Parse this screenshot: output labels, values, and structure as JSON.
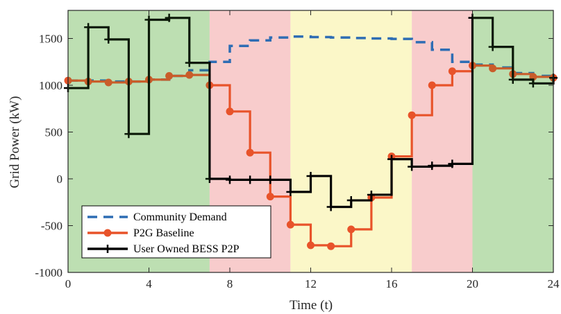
{
  "chart_data": {
    "type": "line",
    "xlabel": "Time (t)",
    "ylabel": "Grid Power (kW)",
    "xlim": [
      0,
      24
    ],
    "ylim": [
      -1000,
      1800
    ],
    "xticks": [
      0,
      4,
      8,
      12,
      16,
      20,
      24
    ],
    "yticks": [
      -1000,
      -500,
      0,
      500,
      1000,
      1500
    ],
    "step": true,
    "regions": [
      {
        "from": 0,
        "to": 7,
        "color": "#d9f2d0"
      },
      {
        "from": 7,
        "to": 11,
        "color": "#f8cccc"
      },
      {
        "from": 11,
        "to": 17,
        "color": "#fbf7c8"
      },
      {
        "from": 17,
        "to": 20,
        "color": "#f8cccc"
      },
      {
        "from": 20,
        "to": 24,
        "color": "#d9f2d0"
      }
    ],
    "series": [
      {
        "name": "Community Demand",
        "color": "#2e6db4",
        "style": "dashed",
        "x": [
          0,
          1,
          2,
          3,
          4,
          5,
          6,
          7,
          8,
          9,
          10,
          11,
          12,
          13,
          14,
          15,
          16,
          17,
          18,
          19,
          20,
          21,
          22,
          23,
          24
        ],
        "values": [
          1050,
          1050,
          1040,
          1040,
          1060,
          1100,
          1160,
          1250,
          1420,
          1480,
          1510,
          1520,
          1515,
          1510,
          1505,
          1500,
          1495,
          1460,
          1380,
          1250,
          1220,
          1190,
          1130,
          1100,
          1090
        ]
      },
      {
        "name": "P2G Baseline",
        "color": "#e8532a",
        "style": "solid",
        "marker": "circle",
        "x": [
          0,
          1,
          2,
          3,
          4,
          5,
          6,
          7,
          8,
          9,
          10,
          11,
          12,
          13,
          14,
          15,
          16,
          17,
          18,
          19,
          20,
          21,
          22,
          23,
          24
        ],
        "values": [
          1050,
          1040,
          1030,
          1040,
          1060,
          1100,
          1110,
          1000,
          720,
          280,
          -190,
          -490,
          -710,
          -720,
          -540,
          -200,
          240,
          680,
          1000,
          1150,
          1210,
          1180,
          1120,
          1090,
          1080
        ]
      },
      {
        "name": "User Owned BESS P2P",
        "color": "#000000",
        "style": "solid",
        "marker": "plus",
        "x": [
          0,
          1,
          2,
          3,
          4,
          5,
          6,
          7,
          8,
          9,
          10,
          11,
          12,
          13,
          14,
          15,
          16,
          17,
          18,
          19,
          20,
          21,
          22,
          23,
          24
        ],
        "values": [
          970,
          1620,
          1490,
          480,
          1700,
          1720,
          1240,
          0,
          -10,
          -10,
          -10,
          -140,
          30,
          -300,
          -230,
          -170,
          210,
          130,
          140,
          160,
          1720,
          1410,
          1060,
          1020,
          1080
        ]
      }
    ],
    "legend_position": "bottom-left"
  },
  "colors": {
    "axis": "#262626",
    "dark_green_overlay": "#1c3a1c",
    "orange_on_green": "#c98a1e"
  }
}
